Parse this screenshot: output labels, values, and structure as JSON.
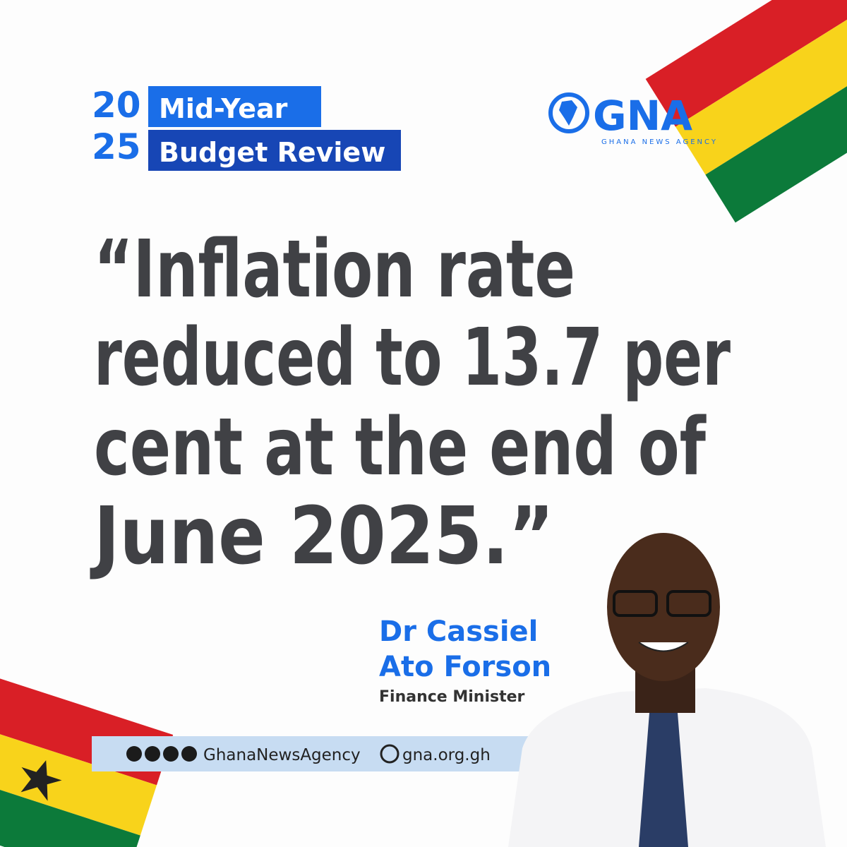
{
  "badge": {
    "year_top": "20",
    "year_bottom": "25",
    "line1": "Mid-Year",
    "line2": "Budget Review"
  },
  "logo": {
    "name": "GNA",
    "tagline": "GHANA NEWS AGENCY"
  },
  "quote": {
    "lines": [
      "“Inflation rate",
      "reduced to 13.7 per",
      "cent at the end of",
      "June 2025.”"
    ]
  },
  "speaker": {
    "name_line1": "Dr Cassiel",
    "name_line2": "Ato Forson",
    "role": "Finance Minister"
  },
  "footer": {
    "handle": "GhanaNewsAgency",
    "website": "gna.org.gh"
  }
}
